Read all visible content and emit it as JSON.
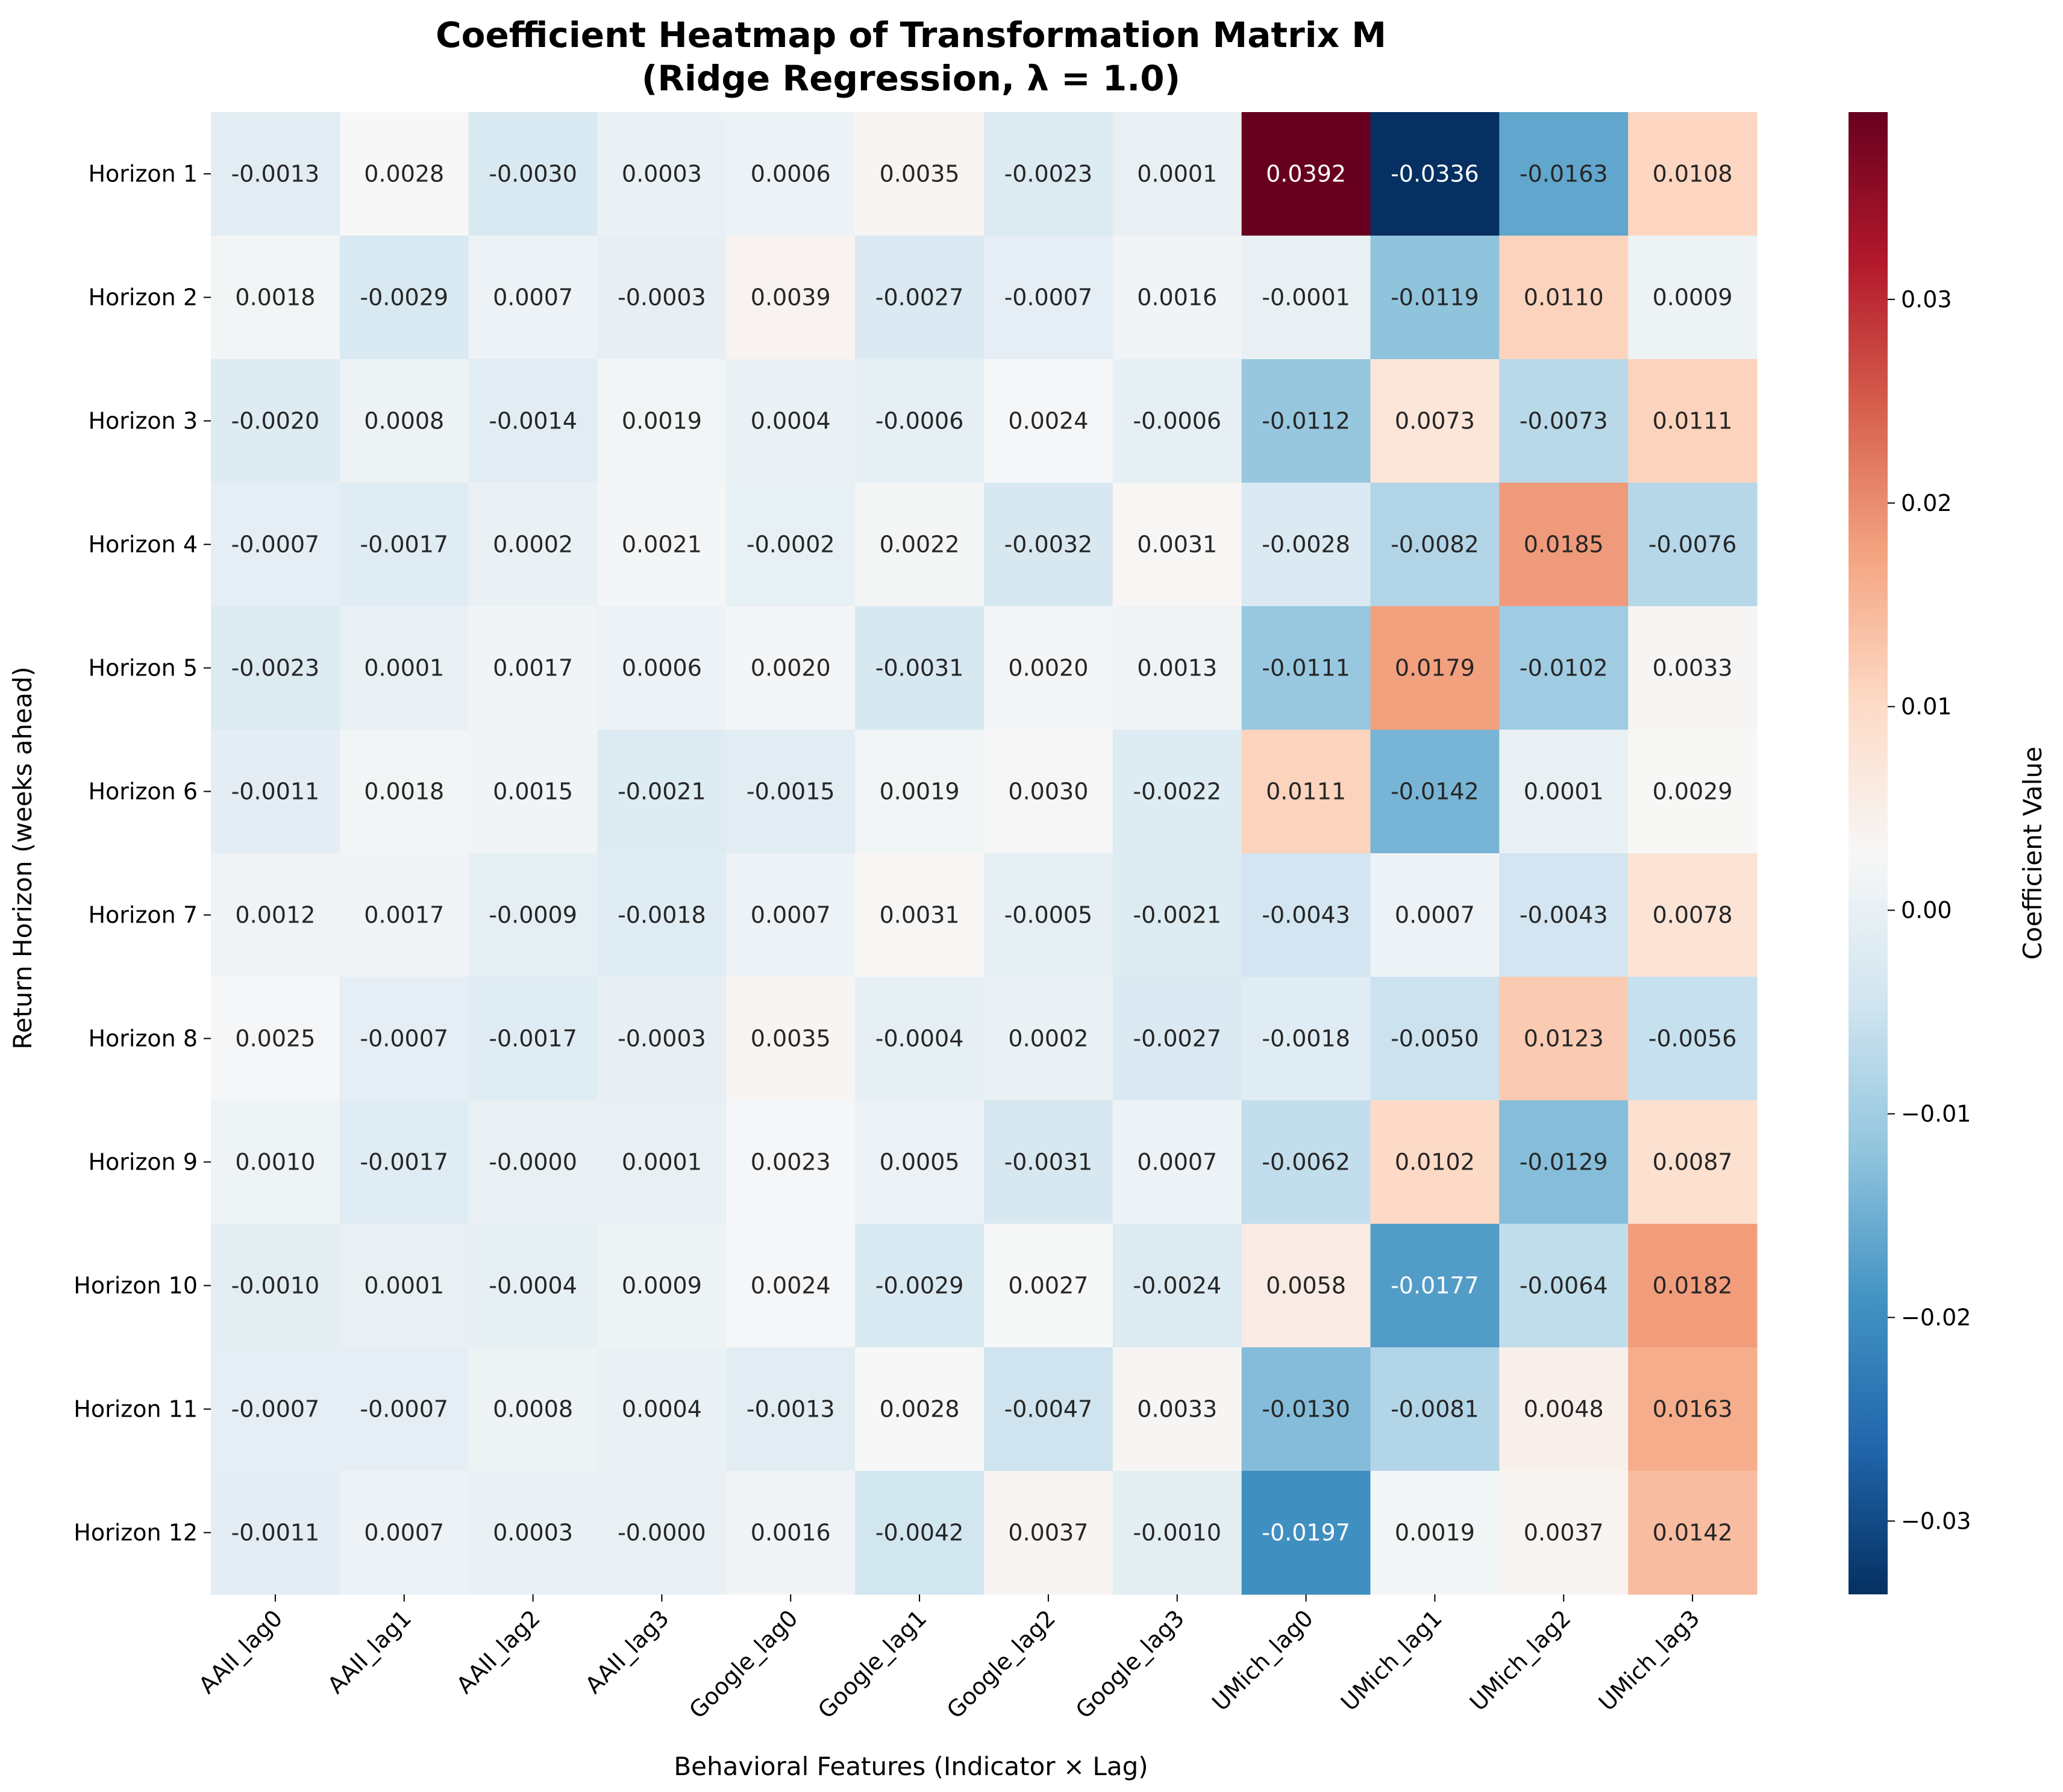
{
  "chart_data": {
    "type": "heatmap",
    "title": "Coefficient Heatmap of Transformation Matrix M",
    "subtitle": "(Ridge Regression, λ = 1.0)",
    "xlabel": "Behavioral Features (Indicator × Lag)",
    "ylabel": "Return Horizon (weeks ahead)",
    "colorbar_label": "Coefficient Value",
    "colormap": "RdBu_r",
    "vmin": -0.0336,
    "vmax": 0.0392,
    "colorbar_ticks": [
      0.03,
      0.02,
      0.01,
      0.0,
      -0.01,
      -0.02,
      -0.03
    ],
    "colorbar_tick_labels": [
      "0.03",
      "0.02",
      "0.01",
      "0.00",
      "−0.01",
      "−0.02",
      "−0.03"
    ],
    "x_categories": [
      "AAII_lag0",
      "AAII_lag1",
      "AAII_lag2",
      "AAII_lag3",
      "Google_lag0",
      "Google_lag1",
      "Google_lag2",
      "Google_lag3",
      "UMich_lag0",
      "UMich_lag1",
      "UMich_lag2",
      "UMich_lag3"
    ],
    "y_categories": [
      "Horizon 1",
      "Horizon 2",
      "Horizon 3",
      "Horizon 4",
      "Horizon 5",
      "Horizon 6",
      "Horizon 7",
      "Horizon 8",
      "Horizon 9",
      "Horizon 10",
      "Horizon 11",
      "Horizon 12"
    ],
    "values": [
      [
        -0.0013,
        0.0028,
        -0.003,
        0.0003,
        0.0006,
        0.0035,
        -0.0023,
        0.0001,
        0.0392,
        -0.0336,
        -0.0163,
        0.0108
      ],
      [
        0.0018,
        -0.0029,
        0.0007,
        -0.0003,
        0.0039,
        -0.0027,
        -0.0007,
        0.0016,
        -0.0001,
        -0.0119,
        0.011,
        0.0009
      ],
      [
        -0.002,
        0.0008,
        -0.0014,
        0.0019,
        0.0004,
        -0.0006,
        0.0024,
        -0.0006,
        -0.0112,
        0.0073,
        -0.0073,
        0.0111
      ],
      [
        -0.0007,
        -0.0017,
        0.0002,
        0.0021,
        -0.0002,
        0.0022,
        -0.0032,
        0.0031,
        -0.0028,
        -0.0082,
        0.0185,
        -0.0076
      ],
      [
        -0.0023,
        0.0001,
        0.0017,
        0.0006,
        0.002,
        -0.0031,
        0.002,
        0.0013,
        -0.0111,
        0.0179,
        -0.0102,
        0.0033
      ],
      [
        -0.0011,
        0.0018,
        0.0015,
        -0.0021,
        -0.0015,
        0.0019,
        0.003,
        -0.0022,
        0.0111,
        -0.0142,
        0.0001,
        0.0029
      ],
      [
        0.0012,
        0.0017,
        -0.0009,
        -0.0018,
        0.0007,
        0.0031,
        -0.0005,
        -0.0021,
        -0.0043,
        0.0007,
        -0.0043,
        0.0078
      ],
      [
        0.0025,
        -0.0007,
        -0.0017,
        -0.0003,
        0.0035,
        -0.0004,
        0.0002,
        -0.0027,
        -0.0018,
        -0.005,
        0.0123,
        -0.0056
      ],
      [
        0.001,
        -0.0017,
        -0.0,
        0.0001,
        0.0023,
        0.0005,
        -0.0031,
        0.0007,
        -0.0062,
        0.0102,
        -0.0129,
        0.0087
      ],
      [
        -0.001,
        0.0001,
        -0.0004,
        0.0009,
        0.0024,
        -0.0029,
        0.0027,
        -0.0024,
        0.0058,
        -0.0177,
        -0.0064,
        0.0182
      ],
      [
        -0.0007,
        -0.0007,
        0.0008,
        0.0004,
        -0.0013,
        0.0028,
        -0.0047,
        0.0033,
        -0.013,
        -0.0081,
        0.0048,
        0.0163
      ],
      [
        -0.0011,
        0.0007,
        0.0003,
        -0.0,
        0.0016,
        -0.0042,
        0.0037,
        -0.001,
        -0.0197,
        0.0019,
        0.0037,
        0.0142
      ]
    ],
    "cell_labels": [
      [
        "-0.0013",
        "0.0028",
        "-0.0030",
        "0.0003",
        "0.0006",
        "0.0035",
        "-0.0023",
        "0.0001",
        "0.0392",
        "-0.0336",
        "-0.0163",
        "0.0108"
      ],
      [
        "0.0018",
        "-0.0029",
        "0.0007",
        "-0.0003",
        "0.0039",
        "-0.0027",
        "-0.0007",
        "0.0016",
        "-0.0001",
        "-0.0119",
        "0.0110",
        "0.0009"
      ],
      [
        "-0.0020",
        "0.0008",
        "-0.0014",
        "0.0019",
        "0.0004",
        "-0.0006",
        "0.0024",
        "-0.0006",
        "-0.0112",
        "0.0073",
        "-0.0073",
        "0.0111"
      ],
      [
        "-0.0007",
        "-0.0017",
        "0.0002",
        "0.0021",
        "-0.0002",
        "0.0022",
        "-0.0032",
        "0.0031",
        "-0.0028",
        "-0.0082",
        "0.0185",
        "-0.0076"
      ],
      [
        "-0.0023",
        "0.0001",
        "0.0017",
        "0.0006",
        "0.0020",
        "-0.0031",
        "0.0020",
        "0.0013",
        "-0.0111",
        "0.0179",
        "-0.0102",
        "0.0033"
      ],
      [
        "-0.0011",
        "0.0018",
        "0.0015",
        "-0.0021",
        "-0.0015",
        "0.0019",
        "0.0030",
        "-0.0022",
        "0.0111",
        "-0.0142",
        "0.0001",
        "0.0029"
      ],
      [
        "0.0012",
        "0.0017",
        "-0.0009",
        "-0.0018",
        "0.0007",
        "0.0031",
        "-0.0005",
        "-0.0021",
        "-0.0043",
        "0.0007",
        "-0.0043",
        "0.0078"
      ],
      [
        "0.0025",
        "-0.0007",
        "-0.0017",
        "-0.0003",
        "0.0035",
        "-0.0004",
        "0.0002",
        "-0.0027",
        "-0.0018",
        "-0.0050",
        "0.0123",
        "-0.0056"
      ],
      [
        "0.0010",
        "-0.0017",
        "-0.0000",
        "0.0001",
        "0.0023",
        "0.0005",
        "-0.0031",
        "0.0007",
        "-0.0062",
        "0.0102",
        "-0.0129",
        "0.0087"
      ],
      [
        "-0.0010",
        "0.0001",
        "-0.0004",
        "0.0009",
        "0.0024",
        "-0.0029",
        "0.0027",
        "-0.0024",
        "0.0058",
        "-0.0177",
        "-0.0064",
        "0.0182"
      ],
      [
        "-0.0007",
        "-0.0007",
        "0.0008",
        "0.0004",
        "-0.0013",
        "0.0028",
        "-0.0047",
        "0.0033",
        "-0.0130",
        "-0.0081",
        "0.0048",
        "0.0163"
      ],
      [
        "-0.0011",
        "0.0007",
        "0.0003",
        "-0.0000",
        "0.0016",
        "-0.0042",
        "0.0037",
        "-0.0010",
        "-0.0197",
        "0.0019",
        "0.0037",
        "0.0142"
      ]
    ]
  }
}
